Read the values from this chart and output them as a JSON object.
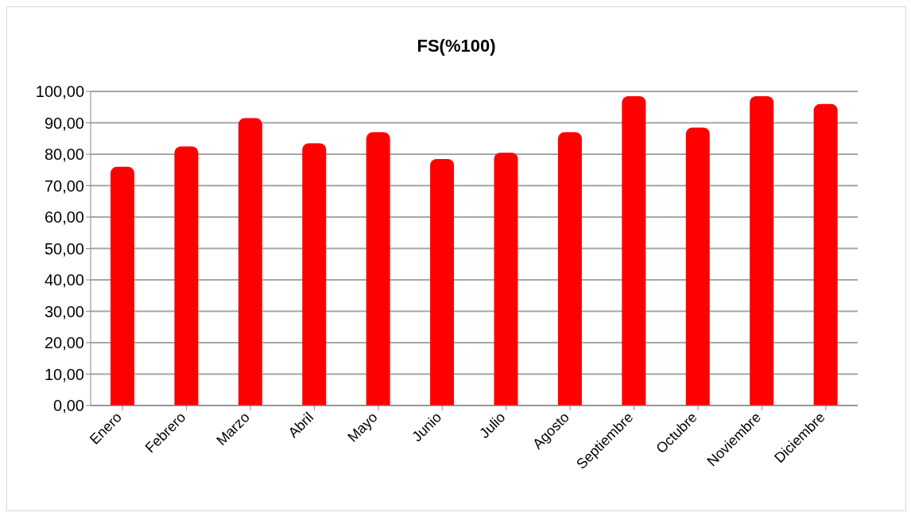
{
  "chart_data": {
    "type": "bar",
    "title": "FS(%100)",
    "categories": [
      "Enero",
      "Febrero",
      "Marzo",
      "Abril",
      "Mayo",
      "Junio",
      "Julio",
      "Agosto",
      "Septiembre",
      "Octubre",
      "Noviembre",
      "Diciembre"
    ],
    "values": [
      76,
      82.5,
      91.5,
      83.5,
      87,
      78.5,
      80.5,
      87,
      98.5,
      88.5,
      98.5,
      96
    ],
    "color": "#ff0000",
    "ylim": [
      0,
      100
    ],
    "yticks": [
      {
        "value": 0,
        "label": "0,00"
      },
      {
        "value": 10,
        "label": "10,00"
      },
      {
        "value": 20,
        "label": "20,00"
      },
      {
        "value": 30,
        "label": "30,00"
      },
      {
        "value": 40,
        "label": "40,00"
      },
      {
        "value": 50,
        "label": "50,00"
      },
      {
        "value": 60,
        "label": "60,00"
      },
      {
        "value": 70,
        "label": "70,00"
      },
      {
        "value": 80,
        "label": "80,00"
      },
      {
        "value": 90,
        "label": "90,00"
      },
      {
        "value": 100,
        "label": "100,00"
      }
    ],
    "grid": "y",
    "legend": false
  }
}
